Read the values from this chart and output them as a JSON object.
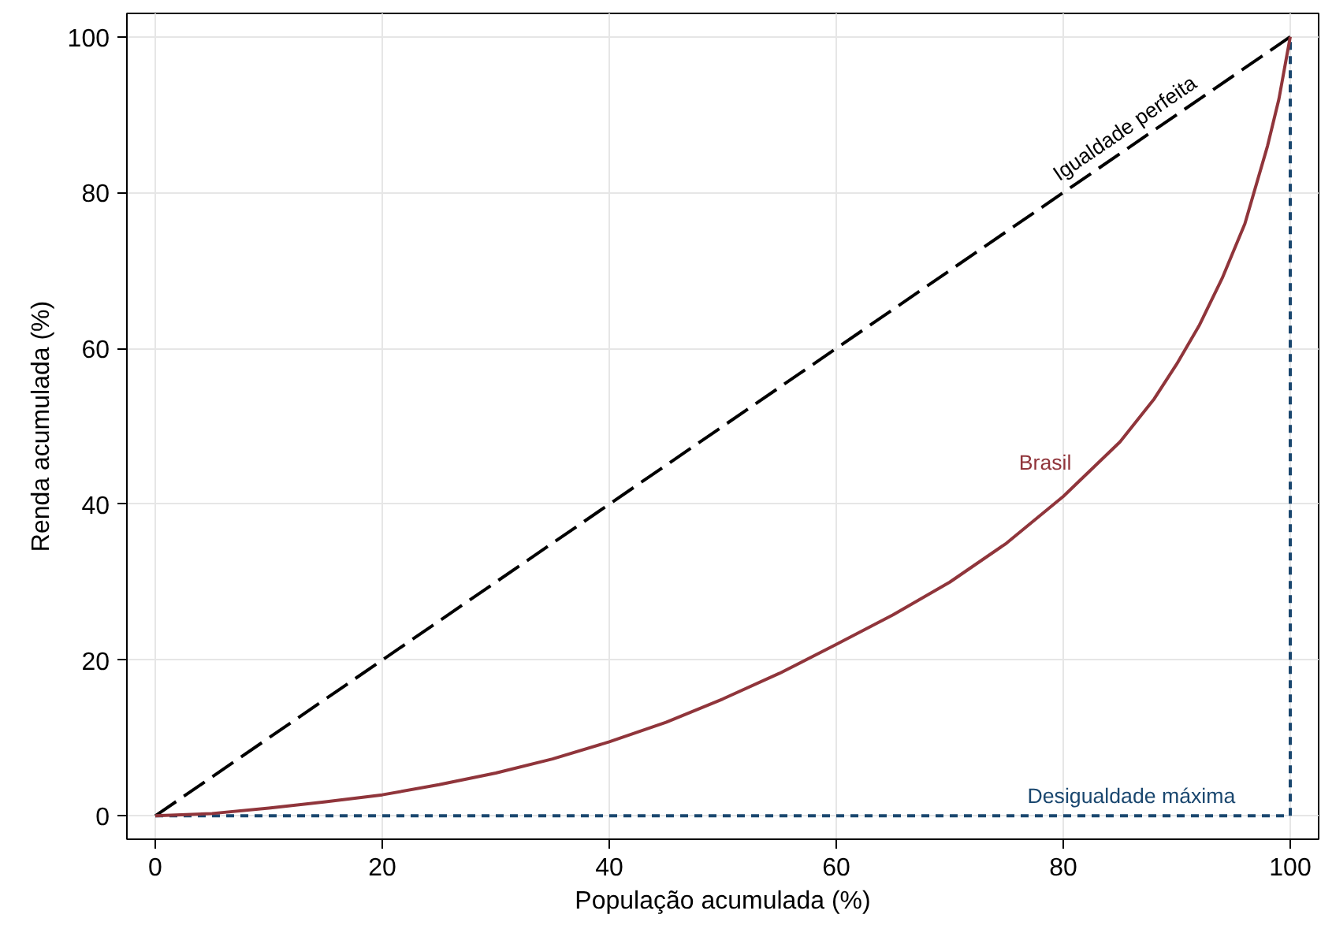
{
  "chart_data": {
    "type": "line",
    "xlabel": "População acumulada (%)",
    "ylabel": "Renda acumulada (%)",
    "xlim": [
      -2.5,
      102.5
    ],
    "ylim": [
      -3,
      103
    ],
    "xticks": [
      0,
      20,
      40,
      60,
      80,
      100
    ],
    "yticks": [
      0,
      20,
      40,
      60,
      80,
      100
    ],
    "grid": true,
    "series": [
      {
        "name": "Igualdade perfeita",
        "color": "#000000",
        "line_style": "dashed",
        "x": [
          0,
          100
        ],
        "values": [
          0,
          100
        ]
      },
      {
        "name": "Desigualdade máxima",
        "color": "#1a476f",
        "line_style": "dotted",
        "x": [
          0,
          100,
          100
        ],
        "values": [
          0,
          0,
          100
        ]
      },
      {
        "name": "Brasil",
        "color": "#90353b",
        "line_style": "solid",
        "x": [
          0,
          5,
          10,
          15,
          20,
          25,
          30,
          35,
          40,
          45,
          50,
          55,
          60,
          65,
          70,
          75,
          80,
          85,
          88,
          90,
          92,
          94,
          96,
          98,
          99,
          100
        ],
        "values": [
          0,
          0.3,
          1,
          1.8,
          2.7,
          4,
          5.5,
          7.3,
          9.5,
          12,
          15,
          18.3,
          22,
          25.8,
          30,
          35,
          41,
          48,
          53.5,
          58,
          63,
          69,
          76,
          86,
          92,
          100
        ]
      }
    ]
  }
}
